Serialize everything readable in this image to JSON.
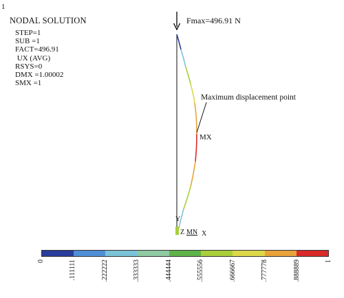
{
  "header": {
    "window_number": "1",
    "title": "NODAL SOLUTION"
  },
  "info": [
    "STEP=1",
    "SUB =1",
    "FACT=496.91",
    " UX (AVG)",
    "RSYS=0",
    "DMX =1.00002",
    "SMX =1"
  ],
  "load": {
    "label": "Fmax=496.91 N"
  },
  "annotation": {
    "text": "Maximum displacement point"
  },
  "markers": {
    "max": "MX",
    "min": "MN"
  },
  "triad": {
    "y": "Y",
    "z": "Z",
    "x": "X"
  },
  "legend": {
    "colors": [
      "#2a3d9c",
      "#4f8fd6",
      "#7cc3d8",
      "#8fcaa3",
      "#5fb349",
      "#a8cf3a",
      "#dcd84a",
      "#e9a23b",
      "#d92a2a"
    ],
    "ticks": [
      "0",
      ".111111",
      ".222222",
      ".333333",
      ".444444",
      ".555556",
      ".666667",
      ".777778",
      ".888889",
      "1"
    ]
  }
}
